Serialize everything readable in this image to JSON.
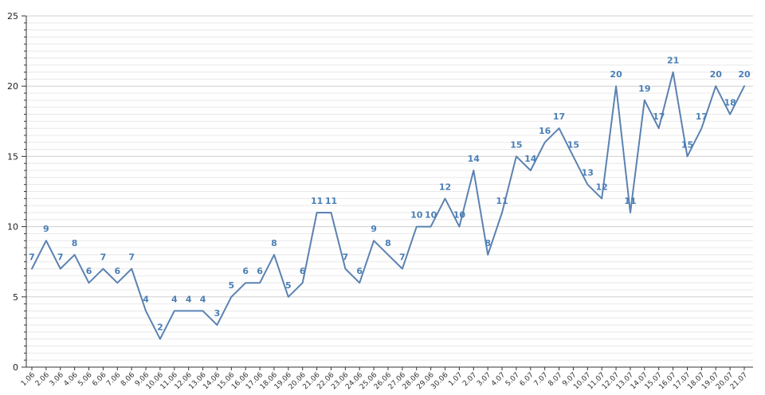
{
  "chart_data": {
    "type": "line",
    "title": "",
    "xlabel": "",
    "ylabel": "",
    "ylim": [
      0,
      25
    ],
    "y_ticks": [
      0,
      5,
      10,
      15,
      20,
      25
    ],
    "grid": true,
    "legend": "none",
    "colors": {
      "line": "#5b82b2",
      "labels": "#4a7fb5",
      "grid_major": "#cfcfcf",
      "grid_minor": "#e8e8e8",
      "axis": "#333333"
    },
    "categories": [
      "1.06",
      "2.06",
      "3.06",
      "4.06",
      "5.06",
      "6.06",
      "7.06",
      "8.06",
      "9.06",
      "10.06",
      "11.06",
      "12.06",
      "13.06",
      "14.06",
      "15.06",
      "16.06",
      "17.06",
      "18.06",
      "19.06",
      "20.06",
      "21.06",
      "22.06",
      "23.06",
      "24.06",
      "25.06",
      "26.06",
      "27.06",
      "28.06",
      "29.06",
      "30.06",
      "1.07",
      "2.07",
      "3.07",
      "4.07",
      "5.07",
      "6.07",
      "7.07",
      "8.07",
      "9.07",
      "10.07",
      "11.07",
      "12.07",
      "13.07",
      "14.07",
      "15.07",
      "16.07",
      "17.07",
      "18.07",
      "19.07",
      "20.07",
      "21.07"
    ],
    "values": [
      7,
      9,
      7,
      8,
      6,
      7,
      6,
      7,
      4,
      2,
      4,
      4,
      4,
      3,
      5,
      6,
      6,
      8,
      5,
      6,
      11,
      11,
      7,
      6,
      9,
      8,
      7,
      10,
      10,
      12,
      10,
      14,
      8,
      11,
      15,
      14,
      16,
      17,
      15,
      13,
      12,
      20,
      11,
      19,
      17,
      21,
      15,
      17,
      20,
      18,
      20
    ]
  }
}
